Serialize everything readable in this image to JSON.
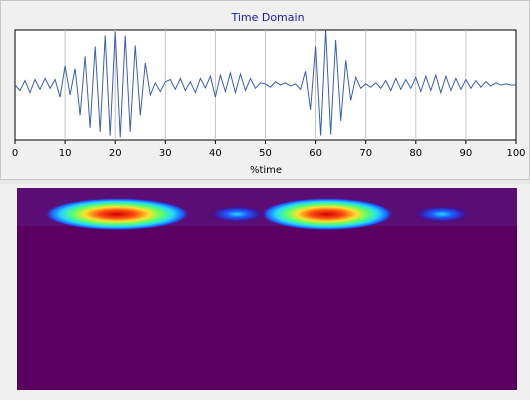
{
  "chart_data": {
    "type": "line",
    "title": "Time Domain",
    "xlabel": "%time",
    "ylabel": "",
    "xlim": [
      0,
      100
    ],
    "ylim": [
      -1,
      1
    ],
    "xticks": [
      0,
      10,
      20,
      30,
      40,
      50,
      60,
      70,
      80,
      90,
      100
    ],
    "grid": true,
    "series": [
      {
        "color": "#3a5fb0",
        "x": [
          0,
          1,
          2,
          3,
          4,
          5,
          6,
          7,
          8,
          9,
          10,
          11,
          12,
          13,
          14,
          15,
          16,
          17,
          18,
          19,
          20,
          21,
          22,
          23,
          24,
          25,
          26,
          27,
          28,
          29,
          30,
          31,
          32,
          33,
          34,
          35,
          36,
          37,
          38,
          39,
          40,
          41,
          42,
          43,
          44,
          45,
          46,
          47,
          48,
          49,
          50,
          51,
          52,
          53,
          54,
          55,
          56,
          57,
          58,
          59,
          60,
          61,
          62,
          63,
          64,
          65,
          66,
          67,
          68,
          69,
          70,
          71,
          72,
          73,
          74,
          75,
          76,
          77,
          78,
          79,
          80,
          81,
          82,
          83,
          84,
          85,
          86,
          87,
          88,
          89,
          90,
          91,
          92,
          93,
          94,
          95,
          96,
          97,
          98,
          99,
          100
        ],
        "y": [
          0.0,
          -0.1,
          0.08,
          -0.14,
          0.1,
          -0.08,
          0.12,
          -0.06,
          0.1,
          -0.22,
          0.35,
          -0.18,
          0.3,
          -0.55,
          0.52,
          -0.78,
          0.7,
          -0.85,
          0.9,
          -0.92,
          0.97,
          -0.95,
          0.9,
          -0.85,
          0.72,
          -0.55,
          0.4,
          -0.18,
          0.04,
          -0.12,
          0.06,
          0.1,
          -0.08,
          0.12,
          -0.1,
          0.06,
          -0.14,
          0.12,
          -0.05,
          0.16,
          -0.22,
          0.18,
          -0.12,
          0.22,
          -0.14,
          0.2,
          -0.1,
          0.12,
          -0.06,
          0.04,
          0.02,
          -0.04,
          0.06,
          0.0,
          0.04,
          -0.02,
          0.02,
          -0.08,
          0.25,
          -0.45,
          0.7,
          -0.92,
          1.0,
          -0.9,
          0.82,
          -0.65,
          0.45,
          -0.28,
          0.14,
          -0.06,
          0.02,
          -0.04,
          0.04,
          -0.06,
          0.08,
          -0.1,
          0.12,
          -0.08,
          0.1,
          -0.06,
          0.14,
          -0.12,
          0.16,
          -0.1,
          0.18,
          -0.14,
          0.16,
          -0.1,
          0.12,
          -0.08,
          0.1,
          -0.06,
          0.08,
          -0.04,
          0.06,
          -0.02,
          0.04,
          0.0,
          0.02,
          0.0,
          0.0
        ]
      }
    ],
    "heatmap": {
      "type": "heatmap",
      "colors": [
        "#5a0060",
        "#3a1ca8",
        "#1e5cff",
        "#25d7ff",
        "#58ff6a",
        "#ffe12a",
        "#ff4a14",
        "#cc0000"
      ],
      "blobs": [
        {
          "x": 20,
          "y": 0.08,
          "intensity": 1.0
        },
        {
          "x": 62,
          "y": 0.08,
          "intensity": 0.9
        },
        {
          "x": 44,
          "y": 0.08,
          "intensity": 0.35
        },
        {
          "x": 85,
          "y": 0.08,
          "intensity": 0.3
        }
      ]
    }
  }
}
